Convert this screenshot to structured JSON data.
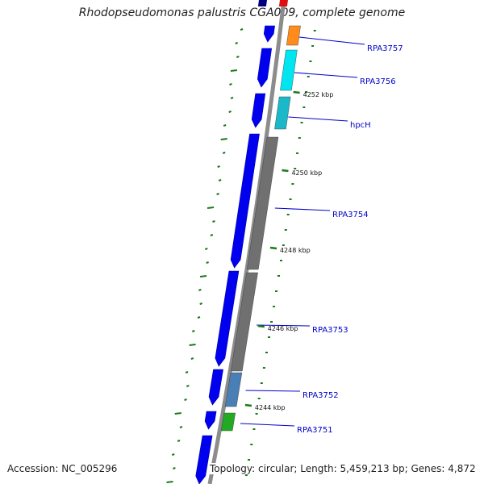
{
  "title": "Rhodopseudomonas palustris CGA009, complete genome",
  "accession_text": "Accession: NC_005296",
  "topology_text": "Topology: circular; Length: 5,459,213 bp; Genes: 4,872",
  "colors": {
    "backbone": "#8c8c8c",
    "forward_strand": "#0000ee",
    "ticks": "#1a7a1a",
    "label": "#0000cc",
    "orange": "#ff8c1a",
    "cyan": "#00e5f0",
    "teal": "#1ab8c8",
    "gray": "#707070",
    "steel": "#4a7fb5",
    "green": "#22aa22",
    "red": "#dd1111",
    "navy": "#000080"
  },
  "kbp_labels": [
    "4252 kbp",
    "4250 kbp",
    "4248 kbp",
    "4246 kbp",
    "4244 kbp"
  ],
  "genes": [
    {
      "name": "RPA3757",
      "color": "orange"
    },
    {
      "name": "RPA3756",
      "color": "cyan"
    },
    {
      "name": "hpcH",
      "color": "teal"
    },
    {
      "name": "RPA3754",
      "color": "gray"
    },
    {
      "name": "RPA3753",
      "color": "gray"
    },
    {
      "name": "RPA3752",
      "color": "steel"
    },
    {
      "name": "RPA3751",
      "color": "green"
    }
  ]
}
